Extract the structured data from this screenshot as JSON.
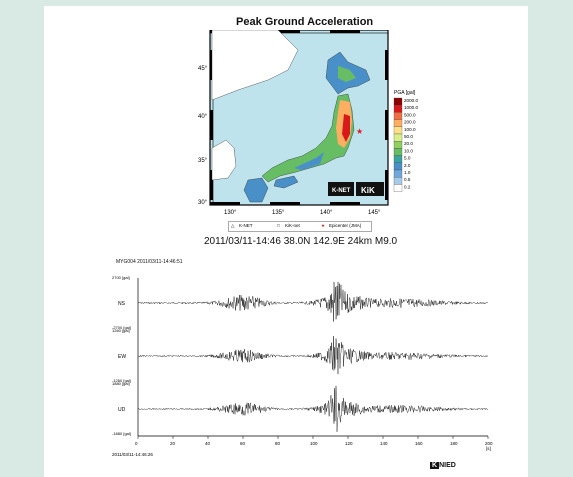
{
  "map": {
    "title": "Peak Ground Acceleration",
    "lat_labels": [
      "45°",
      "40°",
      "35°",
      "30°"
    ],
    "lon_labels": [
      "130°",
      "135°",
      "140°",
      "145°"
    ],
    "colorbar": {
      "title": "PGA [gal]",
      "labels": [
        "2000.0",
        "1000.0",
        "500.0",
        "200.0",
        "100.0",
        "50.0",
        "20.0",
        "10.0",
        "5.0",
        "2.0",
        "1.0",
        "0.5",
        "0.2"
      ],
      "colors": [
        "#8b0000",
        "#d7191c",
        "#f46d43",
        "#fdae61",
        "#fee08b",
        "#d9ef8b",
        "#91cf60",
        "#66bd63",
        "#3aa5a0",
        "#4a90c8",
        "#6fa8dc",
        "#a6cbe8",
        "#ffffff"
      ]
    },
    "logos": {
      "knet": "K-NET",
      "kik": "KiK"
    },
    "legend": {
      "knet": "K-NET",
      "kiknet": "KiK-net",
      "epicenter": "Epicenter (JMA)"
    },
    "colors": {
      "sea": "#bfe3ec",
      "land_low": "#4a90c8",
      "land_mid": "#66bd63",
      "land_high": "#d7191c",
      "epicenter": "#d62020"
    }
  },
  "event_info": "2011/03/11-14:46 38.0N 142.9E 24km M9.0",
  "waveform": {
    "header": "MYG004 2011/03/11-14:46:51",
    "channels": [
      {
        "name": "NS",
        "top_label": "2700 [gal]",
        "bottom_label": "-2700 [gal]"
      },
      {
        "name": "EW",
        "top_label": "1260 [gal]",
        "bottom_label": "-1260 [gal]"
      },
      {
        "name": "UD",
        "top_label": "1880 [gal]",
        "bottom_label": "-1880 [gal]"
      }
    ],
    "x_ticks": [
      "0",
      "20",
      "40",
      "60",
      "80",
      "100",
      "120",
      "140",
      "160",
      "180",
      "200"
    ],
    "x_unit": "[s]",
    "start_time": "2011/03/11-14:46:26",
    "logo": {
      "k": "K",
      "rest": "NIED"
    }
  }
}
